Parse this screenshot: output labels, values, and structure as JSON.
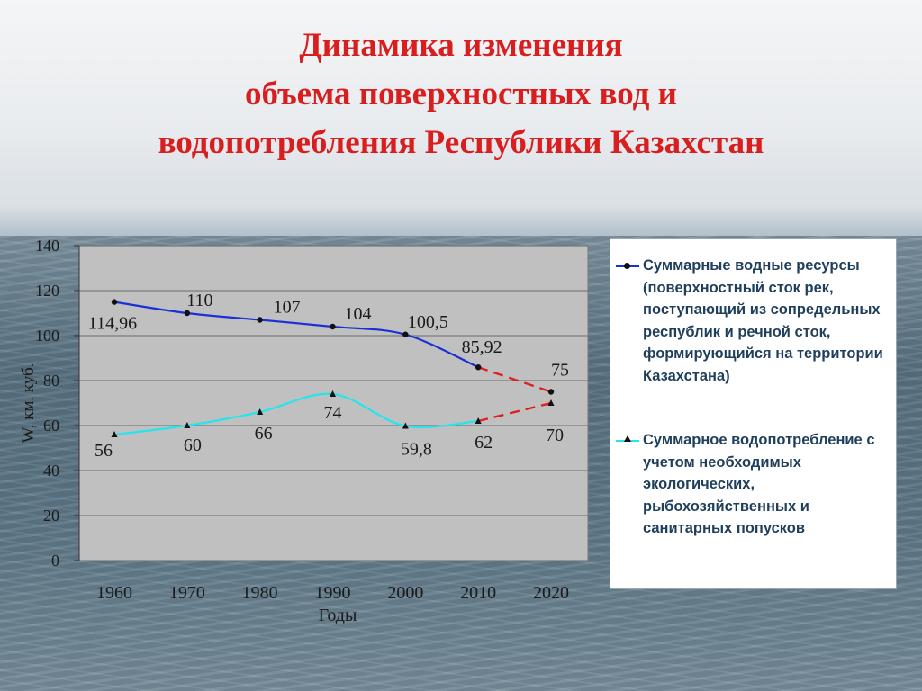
{
  "title_lines": [
    "Динамика изменения",
    "объема поверхностных вод и",
    "водопотребления Республики Казахстан"
  ],
  "colors": {
    "title": "#d81e1e",
    "series_resources": "#1a2fd6",
    "series_consumption": "#23e5ee",
    "forecast": "#e02020",
    "plot_bg": "#c0c0c0",
    "legend_text": "#1f3f5c"
  },
  "chart_data": {
    "type": "line",
    "xlabel": "Годы",
    "ylabel": "W, км. куб.",
    "ylim": [
      0,
      140
    ],
    "yticks": [
      0,
      20,
      40,
      60,
      80,
      100,
      120,
      140
    ],
    "xticks": [
      1960,
      1970,
      1980,
      1990,
      2000,
      2010,
      2020
    ],
    "xlim": [
      1960,
      2020
    ],
    "grid": true,
    "legend_position": "right",
    "series": [
      {
        "name": "Суммарные водные ресурсы (поверхностный сток рек, поступающий из сопредельных республик и речной сток, формирующийся на территории Казахстана)",
        "marker": "circle",
        "x": [
          1960,
          1970,
          1980,
          1990,
          2000,
          2010,
          2020
        ],
        "values": [
          114.96,
          110,
          107,
          104,
          100.5,
          85.92,
          75
        ],
        "labels": [
          "114,96",
          "110",
          "107",
          "104",
          "100,5",
          "85,92",
          "75"
        ],
        "forecast_from": 2010
      },
      {
        "name": "Суммарное водопотребление с учетом необходимых экологических, рыбохозяйственных и санитарных попусков",
        "marker": "triangle",
        "x": [
          1960,
          1970,
          1980,
          1990,
          2000,
          2010,
          2020
        ],
        "values": [
          56,
          60,
          66,
          74,
          59.8,
          62,
          70
        ],
        "labels": [
          "56",
          "60",
          "66",
          "74",
          "59,8",
          "62",
          "70"
        ],
        "forecast_from": 2010
      }
    ]
  },
  "legend": {
    "items": [
      {
        "text": "Суммарные водные ресурсы (поверхностный сток рек, поступающий из сопредельных республик и речной сток, формирующийся на территории Казахстана)"
      },
      {
        "text": "Суммарное водопотребление с учетом необходимых экологических, рыбохозяйственных и санитарных попусков"
      }
    ]
  }
}
